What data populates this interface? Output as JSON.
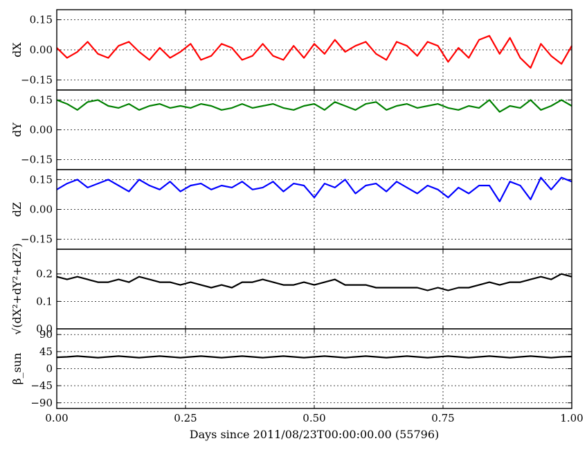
{
  "chart_data": {
    "type": "line",
    "xlabel": "Days since 2011/08/23T00:00:00.00 (55796)",
    "xlim": [
      0.0,
      1.0
    ],
    "x_ticks": [
      0.0,
      0.25,
      0.5,
      0.75,
      1.0
    ],
    "x_tick_labels": [
      "0.00",
      "0.25",
      "0.50",
      "0.75",
      "1.00"
    ],
    "grid": true,
    "panels": [
      {
        "ylabel": "dX",
        "color": "#ff0000",
        "ylim": [
          -0.2,
          0.2
        ],
        "yticks": [
          0.15,
          0.0,
          -0.15
        ],
        "ytick_labels": [
          "0.15",
          "0.00",
          "−0.15"
        ],
        "x": [
          0.0,
          0.02,
          0.04,
          0.06,
          0.08,
          0.1,
          0.12,
          0.14,
          0.16,
          0.18,
          0.2,
          0.22,
          0.24,
          0.26,
          0.28,
          0.3,
          0.32,
          0.34,
          0.36,
          0.38,
          0.4,
          0.42,
          0.44,
          0.46,
          0.48,
          0.5,
          0.52,
          0.54,
          0.56,
          0.58,
          0.6,
          0.62,
          0.64,
          0.66,
          0.68,
          0.7,
          0.72,
          0.74,
          0.76,
          0.78,
          0.8,
          0.82,
          0.84,
          0.86,
          0.88,
          0.9,
          0.92,
          0.94,
          0.96,
          0.98,
          1.0
        ],
        "values": [
          0.01,
          -0.04,
          -0.01,
          0.04,
          -0.02,
          -0.04,
          0.02,
          0.04,
          -0.01,
          -0.05,
          0.01,
          -0.04,
          -0.01,
          0.03,
          -0.05,
          -0.03,
          0.03,
          0.01,
          -0.05,
          -0.03,
          0.03,
          -0.03,
          -0.05,
          0.02,
          -0.04,
          0.03,
          -0.02,
          0.05,
          -0.01,
          0.02,
          0.04,
          -0.02,
          -0.05,
          0.04,
          0.02,
          -0.03,
          0.04,
          0.02,
          -0.06,
          0.01,
          -0.04,
          0.05,
          0.07,
          -0.02,
          0.06,
          -0.04,
          -0.09,
          0.03,
          -0.03,
          -0.07,
          0.02
        ]
      },
      {
        "ylabel": "dY",
        "color": "#008000",
        "ylim": [
          -0.2,
          0.2
        ],
        "yticks": [
          0.15,
          0.0,
          -0.15
        ],
        "ytick_labels": [
          "0.15",
          "0.00",
          "−0.15"
        ],
        "x": [
          0.0,
          0.02,
          0.04,
          0.06,
          0.08,
          0.1,
          0.12,
          0.14,
          0.16,
          0.18,
          0.2,
          0.22,
          0.24,
          0.26,
          0.28,
          0.3,
          0.32,
          0.34,
          0.36,
          0.38,
          0.4,
          0.42,
          0.44,
          0.46,
          0.48,
          0.5,
          0.52,
          0.54,
          0.56,
          0.58,
          0.6,
          0.62,
          0.64,
          0.66,
          0.68,
          0.7,
          0.72,
          0.74,
          0.76,
          0.78,
          0.8,
          0.82,
          0.84,
          0.86,
          0.88,
          0.9,
          0.92,
          0.94,
          0.96,
          0.98,
          1.0
        ],
        "values": [
          0.15,
          0.13,
          0.1,
          0.14,
          0.15,
          0.12,
          0.11,
          0.13,
          0.1,
          0.12,
          0.13,
          0.11,
          0.12,
          0.11,
          0.13,
          0.12,
          0.1,
          0.11,
          0.13,
          0.11,
          0.12,
          0.13,
          0.11,
          0.1,
          0.12,
          0.13,
          0.1,
          0.14,
          0.12,
          0.1,
          0.13,
          0.14,
          0.1,
          0.12,
          0.13,
          0.11,
          0.12,
          0.13,
          0.11,
          0.1,
          0.12,
          0.11,
          0.15,
          0.09,
          0.12,
          0.11,
          0.15,
          0.1,
          0.12,
          0.15,
          0.12
        ]
      },
      {
        "ylabel": "dZ",
        "color": "#0000ff",
        "ylim": [
          -0.2,
          0.2
        ],
        "yticks": [
          0.15,
          0.0,
          -0.15
        ],
        "ytick_labels": [
          "0.15",
          "0.00",
          "−0.15"
        ],
        "x": [
          0.0,
          0.02,
          0.04,
          0.06,
          0.08,
          0.1,
          0.12,
          0.14,
          0.16,
          0.18,
          0.2,
          0.22,
          0.24,
          0.26,
          0.28,
          0.3,
          0.32,
          0.34,
          0.36,
          0.38,
          0.4,
          0.42,
          0.44,
          0.46,
          0.48,
          0.5,
          0.52,
          0.54,
          0.56,
          0.58,
          0.6,
          0.62,
          0.64,
          0.66,
          0.68,
          0.7,
          0.72,
          0.74,
          0.76,
          0.78,
          0.8,
          0.82,
          0.84,
          0.86,
          0.88,
          0.9,
          0.92,
          0.94,
          0.96,
          0.98,
          1.0
        ],
        "values": [
          0.1,
          0.13,
          0.15,
          0.11,
          0.13,
          0.15,
          0.12,
          0.09,
          0.15,
          0.12,
          0.1,
          0.14,
          0.09,
          0.12,
          0.13,
          0.1,
          0.12,
          0.11,
          0.14,
          0.1,
          0.11,
          0.14,
          0.09,
          0.13,
          0.12,
          0.06,
          0.13,
          0.11,
          0.15,
          0.08,
          0.12,
          0.13,
          0.09,
          0.14,
          0.11,
          0.08,
          0.12,
          0.1,
          0.06,
          0.11,
          0.08,
          0.12,
          0.12,
          0.04,
          0.14,
          0.12,
          0.05,
          0.16,
          0.1,
          0.16,
          0.14
        ]
      },
      {
        "ylabel": "√(dX²+dY²+dZ²)",
        "color": "#000000",
        "ylim": [
          0.0,
          0.29
        ],
        "yticks": [
          0.2,
          0.1,
          0.0
        ],
        "ytick_labels": [
          "0.2",
          "0.1",
          "0.0"
        ],
        "x": [
          0.0,
          0.02,
          0.04,
          0.06,
          0.08,
          0.1,
          0.12,
          0.14,
          0.16,
          0.18,
          0.2,
          0.22,
          0.24,
          0.26,
          0.28,
          0.3,
          0.32,
          0.34,
          0.36,
          0.38,
          0.4,
          0.42,
          0.44,
          0.46,
          0.48,
          0.5,
          0.52,
          0.54,
          0.56,
          0.58,
          0.6,
          0.62,
          0.64,
          0.66,
          0.68,
          0.7,
          0.72,
          0.74,
          0.76,
          0.78,
          0.8,
          0.82,
          0.84,
          0.86,
          0.88,
          0.9,
          0.92,
          0.94,
          0.96,
          0.98,
          1.0
        ],
        "values": [
          0.19,
          0.18,
          0.19,
          0.18,
          0.17,
          0.17,
          0.18,
          0.17,
          0.19,
          0.18,
          0.17,
          0.17,
          0.16,
          0.17,
          0.16,
          0.15,
          0.16,
          0.15,
          0.17,
          0.17,
          0.18,
          0.17,
          0.16,
          0.16,
          0.17,
          0.16,
          0.17,
          0.18,
          0.16,
          0.16,
          0.16,
          0.15,
          0.15,
          0.15,
          0.15,
          0.15,
          0.14,
          0.15,
          0.14,
          0.15,
          0.15,
          0.16,
          0.17,
          0.16,
          0.17,
          0.17,
          0.18,
          0.19,
          0.18,
          0.2,
          0.19
        ]
      },
      {
        "ylabel": "β_sun",
        "color": "#000000",
        "ylim": [
          -105,
          105
        ],
        "yticks": [
          90,
          45,
          0,
          -45,
          -90
        ],
        "ytick_labels": [
          "90",
          "45",
          "0",
          "−45",
          "−90"
        ],
        "x": [
          0.0,
          0.02,
          0.04,
          0.06,
          0.08,
          0.1,
          0.12,
          0.14,
          0.16,
          0.18,
          0.2,
          0.22,
          0.24,
          0.26,
          0.28,
          0.3,
          0.32,
          0.34,
          0.36,
          0.38,
          0.4,
          0.42,
          0.44,
          0.46,
          0.48,
          0.5,
          0.52,
          0.54,
          0.56,
          0.58,
          0.6,
          0.62,
          0.64,
          0.66,
          0.68,
          0.7,
          0.72,
          0.74,
          0.76,
          0.78,
          0.8,
          0.82,
          0.84,
          0.86,
          0.88,
          0.9,
          0.92,
          0.94,
          0.96,
          0.98,
          1.0
        ],
        "values": [
          30,
          31,
          33,
          31,
          29,
          31,
          33,
          31,
          29,
          31,
          33,
          31,
          29,
          31,
          33,
          31,
          29,
          31,
          33,
          31,
          29,
          31,
          33,
          31,
          29,
          31,
          33,
          31,
          29,
          31,
          33,
          31,
          29,
          31,
          33,
          31,
          29,
          31,
          33,
          31,
          29,
          31,
          33,
          31,
          29,
          31,
          33,
          31,
          29,
          31,
          32
        ]
      }
    ]
  }
}
